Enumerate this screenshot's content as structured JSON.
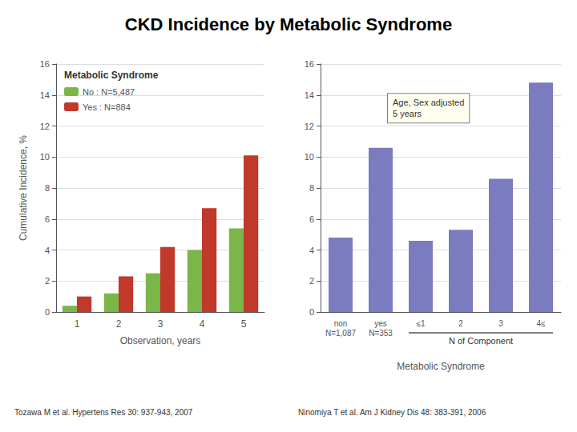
{
  "title": "CKD Incidence by Metabolic Syndrome",
  "annotations": [
    "Tozawa M et al. Hypertens Res 30: 937-943, 2007",
    "Ninomiya T et al. Am J Kidney Dis 48: 383-391, 2006"
  ],
  "chart_data": [
    {
      "type": "bar",
      "categories": [
        "1",
        "2",
        "3",
        "4",
        "5"
      ],
      "series": [
        {
          "name": "No : N=5,487",
          "color": "#7ab648",
          "values": [
            0.4,
            1.2,
            2.5,
            4.0,
            5.4
          ]
        },
        {
          "name": "Yes : N=884",
          "color": "#c0392b",
          "values": [
            1.0,
            2.3,
            4.2,
            6.7,
            10.1
          ]
        }
      ],
      "xlabel": "Observation, years",
      "ylabel": "Cumulative Incidence, %",
      "ylim": [
        0,
        16
      ],
      "yticks": [
        0,
        2,
        4,
        6,
        8,
        10,
        12,
        14,
        16
      ],
      "grid": true,
      "legend": "upper left",
      "legend_title": "Metabolic Syndrome"
    },
    {
      "type": "bar",
      "categories": [
        "non\nN=1,087",
        "yes\nN=353",
        "≤1",
        "2",
        "3",
        "4≤"
      ],
      "values": [
        4.8,
        10.6,
        4.6,
        5.3,
        8.6,
        14.8
      ],
      "color": "#7b7bbf",
      "xlabel": "Metabolic Syndrome",
      "ylim": [
        0,
        16
      ],
      "yticks": [
        0,
        2,
        4,
        6,
        8,
        10,
        12,
        14,
        16
      ],
      "grid": true,
      "annotations": [
        "Age, Sex adjusted\n5 years",
        "N of Component"
      ]
    }
  ]
}
